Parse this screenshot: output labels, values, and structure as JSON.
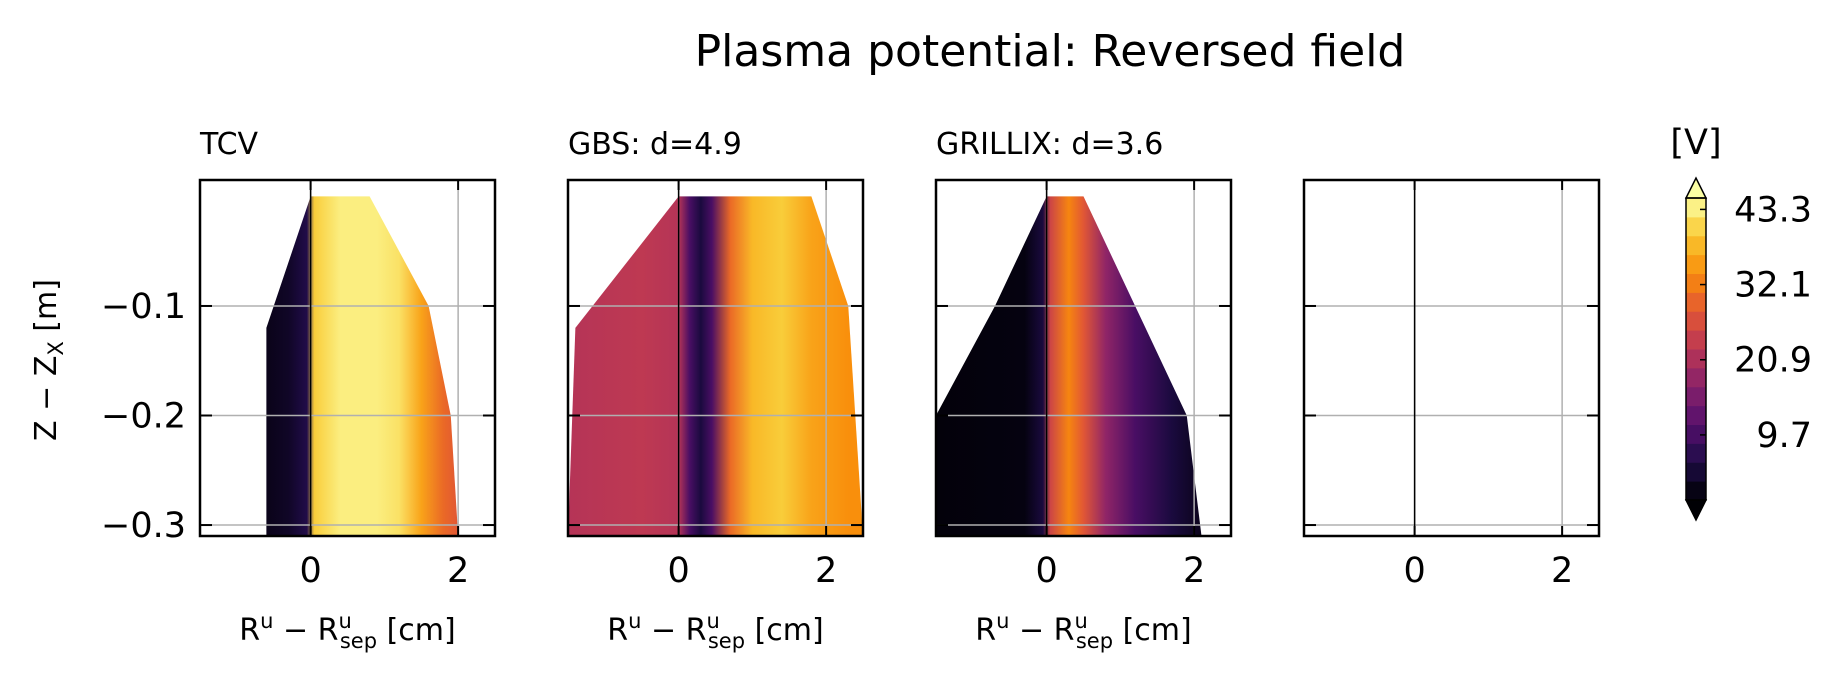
{
  "chart_data": {
    "type": "heatmap",
    "title": "Plasma potential: Reversed field",
    "ylabel": "Z − Z",
    "ylabel_sub": "X",
    "ylabel_unit": "[m]",
    "xlabel": "R",
    "xlabel_sup": "u",
    "xlabel_mid": " − R",
    "xlabel_sup2": "u",
    "xlabel_sub2": "sep",
    "xlabel_unit": " [cm]",
    "xlim": [
      -1.5,
      2.5
    ],
    "ylim": [
      -0.31,
      0.015
    ],
    "xticks": [
      "0",
      "2"
    ],
    "yticks": [
      "−0.1",
      "−0.2",
      "−0.3"
    ],
    "grid": true,
    "colorbar": {
      "label": "[V]",
      "ticks": [
        "43.3",
        "32.1",
        "20.9",
        "9.7"
      ],
      "tick_values": [
        43.3,
        32.1,
        20.9,
        9.7
      ],
      "range": [
        0,
        45
      ],
      "extend": "both",
      "colormap": "inferno"
    },
    "panels": [
      {
        "title": "TCV",
        "profile": [
          [
            -0.8,
            2
          ],
          [
            -0.55,
            2
          ],
          [
            -0.3,
            3
          ],
          [
            -0.05,
            6
          ],
          [
            0.05,
            40
          ],
          [
            0.4,
            43.3
          ],
          [
            0.9,
            43.3
          ],
          [
            1.2,
            42
          ],
          [
            1.5,
            36
          ],
          [
            1.8,
            30
          ],
          [
            2.0,
            28
          ]
        ],
        "boundary_right_x": [
          [
            0.0,
            0.8
          ],
          [
            -0.1,
            1.6
          ],
          [
            -0.2,
            1.9
          ],
          [
            -0.31,
            2.0
          ]
        ],
        "boundary_left_x": [
          [
            0.0,
            0.0
          ],
          [
            -0.12,
            -0.6
          ],
          [
            -0.31,
            -0.6
          ]
        ]
      },
      {
        "title": "GBS: d=4.9",
        "profile": [
          [
            -1.5,
            22
          ],
          [
            -0.5,
            23
          ],
          [
            0.0,
            22
          ],
          [
            0.15,
            10
          ],
          [
            0.3,
            5
          ],
          [
            0.45,
            10
          ],
          [
            0.7,
            30
          ],
          [
            1.0,
            38
          ],
          [
            1.4,
            40
          ],
          [
            1.8,
            36
          ],
          [
            2.3,
            34
          ]
        ],
        "boundary_right_x": [
          [
            0.0,
            1.8
          ],
          [
            -0.1,
            2.3
          ],
          [
            -0.31,
            2.5
          ]
        ],
        "boundary_left_x": [
          [
            0.0,
            0.0
          ],
          [
            -0.12,
            -1.4
          ],
          [
            -0.31,
            -1.5
          ]
        ]
      },
      {
        "title": "GRILLIX: d=3.6",
        "profile": [
          [
            -1.5,
            0.5
          ],
          [
            -0.3,
            1
          ],
          [
            -0.05,
            5
          ],
          [
            0.05,
            25
          ],
          [
            0.3,
            33
          ],
          [
            0.5,
            28
          ],
          [
            0.8,
            18
          ],
          [
            1.2,
            10
          ],
          [
            1.7,
            5
          ],
          [
            2.1,
            2
          ]
        ],
        "boundary_right_x": [
          [
            0.0,
            0.5
          ],
          [
            -0.1,
            1.2
          ],
          [
            -0.2,
            1.9
          ],
          [
            -0.31,
            2.1
          ]
        ],
        "boundary_left_x": [
          [
            0.0,
            0.0
          ],
          [
            -0.1,
            -0.7
          ],
          [
            -0.2,
            -1.5
          ],
          [
            -0.31,
            -1.5
          ]
        ]
      },
      {
        "title": "",
        "profile": [],
        "boundary_right_x": [],
        "boundary_left_x": []
      }
    ]
  }
}
